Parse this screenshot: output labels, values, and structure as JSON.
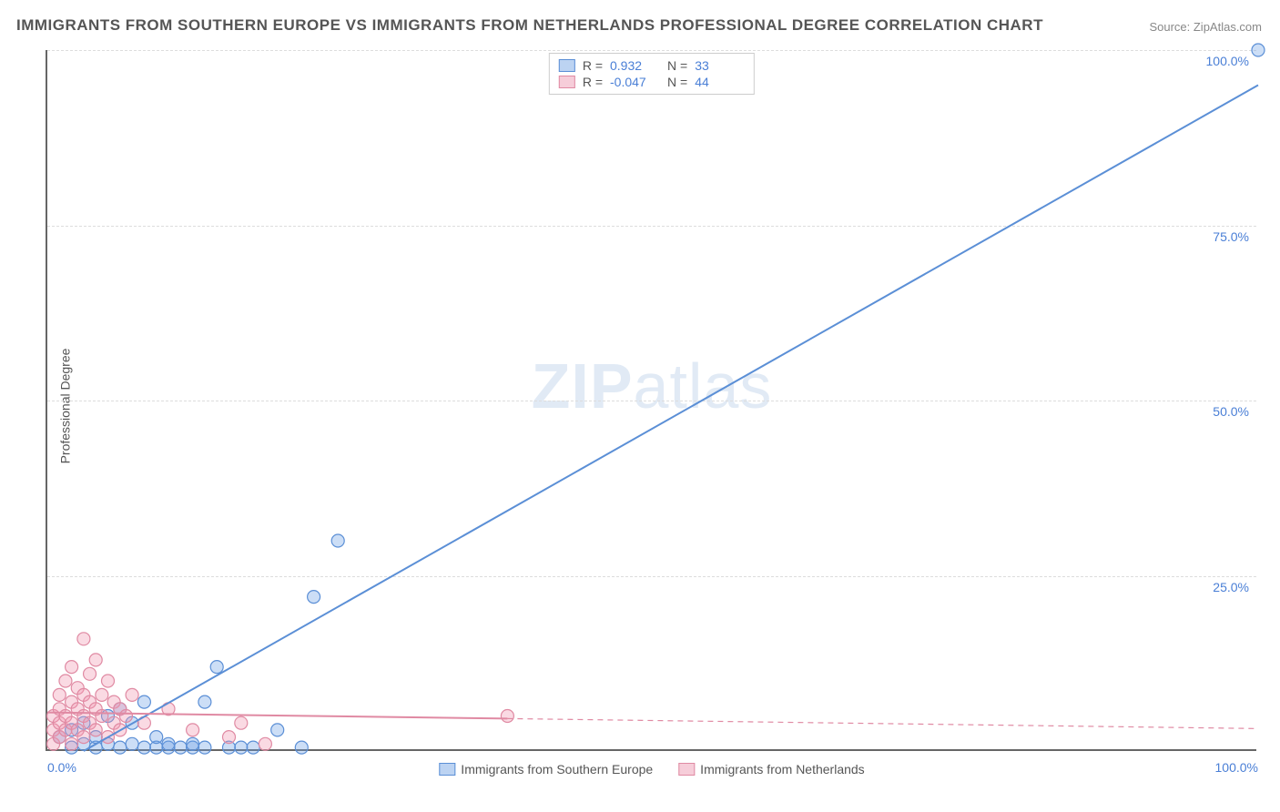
{
  "title": "IMMIGRANTS FROM SOUTHERN EUROPE VS IMMIGRANTS FROM NETHERLANDS PROFESSIONAL DEGREE CORRELATION CHART",
  "source_prefix": "Source: ",
  "source_name": "ZipAtlas.com",
  "y_axis_label": "Professional Degree",
  "watermark_a": "ZIP",
  "watermark_b": "atlas",
  "chart": {
    "type": "scatter",
    "xlim": [
      0,
      100
    ],
    "ylim": [
      0,
      100
    ],
    "y_ticks": [
      25,
      50,
      75,
      100
    ],
    "y_tick_labels": [
      "25.0%",
      "50.0%",
      "75.0%",
      "100.0%"
    ],
    "x_ticks": [
      0,
      100
    ],
    "x_tick_labels": [
      "0.0%",
      "100.0%"
    ],
    "background_color": "#ffffff",
    "grid_color": "#dddddd",
    "axis_color": "#666666",
    "tick_label_color": "#4a7fd6",
    "marker_radius": 7,
    "marker_stroke_width": 1.2,
    "line_width": 2,
    "series": [
      {
        "id": "southern_europe",
        "label": "Immigrants from Southern Europe",
        "color_fill": "rgba(110,160,230,0.35)",
        "color_stroke": "#5b8fd6",
        "legend_fill": "#bcd3f2",
        "legend_stroke": "#5b8fd6",
        "R": "0.932",
        "N": "33",
        "regression": {
          "x1": 3,
          "y1": 0,
          "x2": 100,
          "y2": 95,
          "solid_until_x": 100
        },
        "points": [
          [
            1,
            2
          ],
          [
            2,
            0.5
          ],
          [
            2,
            3
          ],
          [
            3,
            1
          ],
          [
            3,
            4
          ],
          [
            4,
            0.5
          ],
          [
            4,
            2
          ],
          [
            5,
            1
          ],
          [
            5,
            5
          ],
          [
            6,
            0.5
          ],
          [
            6,
            6
          ],
          [
            7,
            1
          ],
          [
            7,
            4
          ],
          [
            8,
            0.5
          ],
          [
            8,
            7
          ],
          [
            9,
            0.5
          ],
          [
            9,
            2
          ],
          [
            10,
            0.5
          ],
          [
            10,
            1
          ],
          [
            11,
            0.5
          ],
          [
            12,
            0.5
          ],
          [
            12,
            1
          ],
          [
            13,
            0.5
          ],
          [
            13,
            7
          ],
          [
            14,
            12
          ],
          [
            15,
            0.5
          ],
          [
            16,
            0.5
          ],
          [
            17,
            0.5
          ],
          [
            19,
            3
          ],
          [
            21,
            0.5
          ],
          [
            22,
            22
          ],
          [
            24,
            30
          ],
          [
            100,
            100
          ]
        ]
      },
      {
        "id": "netherlands",
        "label": "Immigrants from Netherlands",
        "color_fill": "rgba(240,150,175,0.35)",
        "color_stroke": "#e08aa3",
        "legend_fill": "#f6cdd9",
        "legend_stroke": "#e08aa3",
        "R": "-0.047",
        "N": "44",
        "regression": {
          "x1": 0,
          "y1": 5.5,
          "x2": 100,
          "y2": 3.2,
          "solid_until_x": 38
        },
        "points": [
          [
            0.5,
            1
          ],
          [
            0.5,
            3
          ],
          [
            0.5,
            5
          ],
          [
            1,
            2
          ],
          [
            1,
            4
          ],
          [
            1,
            6
          ],
          [
            1,
            8
          ],
          [
            1.5,
            3
          ],
          [
            1.5,
            5
          ],
          [
            1.5,
            10
          ],
          [
            2,
            1
          ],
          [
            2,
            4
          ],
          [
            2,
            7
          ],
          [
            2,
            12
          ],
          [
            2.5,
            3
          ],
          [
            2.5,
            6
          ],
          [
            2.5,
            9
          ],
          [
            3,
            2
          ],
          [
            3,
            5
          ],
          [
            3,
            8
          ],
          [
            3,
            16
          ],
          [
            3.5,
            4
          ],
          [
            3.5,
            7
          ],
          [
            3.5,
            11
          ],
          [
            4,
            3
          ],
          [
            4,
            6
          ],
          [
            4,
            13
          ],
          [
            4.5,
            5
          ],
          [
            4.5,
            8
          ],
          [
            5,
            2
          ],
          [
            5,
            10
          ],
          [
            5.5,
            4
          ],
          [
            5.5,
            7
          ],
          [
            6,
            3
          ],
          [
            6,
            6
          ],
          [
            6.5,
            5
          ],
          [
            7,
            8
          ],
          [
            8,
            4
          ],
          [
            10,
            6
          ],
          [
            12,
            3
          ],
          [
            15,
            2
          ],
          [
            16,
            4
          ],
          [
            18,
            1
          ],
          [
            38,
            5
          ]
        ]
      }
    ]
  },
  "legend_top": {
    "r_label": "R =",
    "n_label": "N ="
  }
}
